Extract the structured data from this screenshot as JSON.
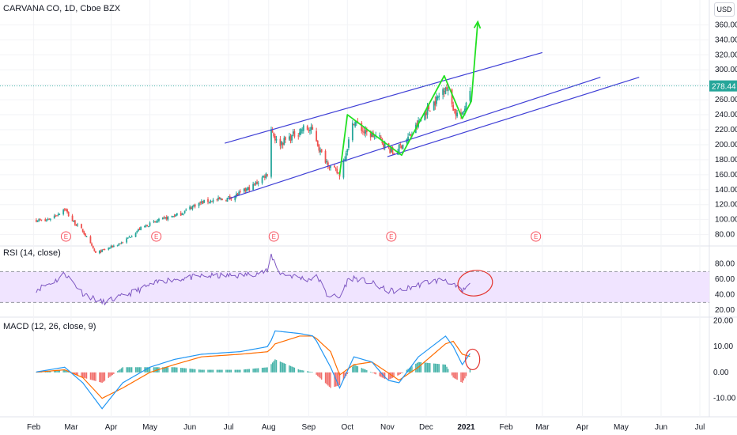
{
  "header": {
    "symbol_title": "CARVANA CO, 1D, Cboe BZX",
    "currency": "USD",
    "last_price": "278.44"
  },
  "indicators": {
    "rsi_title": "RSI (14, close)",
    "macd_title": "MACD (12, 26, close, 9)"
  },
  "earnings_marker_label": "E",
  "colors": {
    "up": "#26a69a",
    "down": "#ef5350",
    "trend_channel": "#3f3fd6",
    "pattern": "#22e022",
    "annotation": "#e3342f",
    "rsi_line": "#7e57c2",
    "rsi_band": "#f0e4ff",
    "macd_line": "#2196f3",
    "signal_line": "#ff6d00",
    "last_price_line": "#26a69a"
  },
  "chart_data": [
    {
      "type": "candlestick",
      "title": "CARVANA CO, 1D, Cboe BZX",
      "x_axis_labels": [
        "Feb",
        "Mar",
        "Apr",
        "May",
        "Jun",
        "Jul",
        "Aug",
        "Sep",
        "Oct",
        "Nov",
        "Dec",
        "2021",
        "Feb",
        "Mar",
        "Apr",
        "May",
        "Jun",
        "Jul"
      ],
      "y_axis_ticks": [
        80,
        100,
        120,
        140,
        160,
        180,
        200,
        220,
        240,
        260,
        280,
        300,
        320,
        340,
        360
      ],
      "ylim": [
        68,
        372
      ],
      "last_price": 278.44,
      "price_path": [
        [
          "2020-02-01",
          100
        ],
        [
          "2020-02-10",
          98
        ],
        [
          "2020-02-20",
          108
        ],
        [
          "2020-02-25",
          115
        ],
        [
          "2020-03-01",
          100
        ],
        [
          "2020-03-10",
          85
        ],
        [
          "2020-03-20",
          55
        ],
        [
          "2020-04-10",
          70
        ],
        [
          "2020-04-25",
          90
        ],
        [
          "2020-05-10",
          100
        ],
        [
          "2020-05-25",
          108
        ],
        [
          "2020-06-05",
          120
        ],
        [
          "2020-06-15",
          125
        ],
        [
          "2020-06-28",
          127
        ],
        [
          "2020-07-10",
          135
        ],
        [
          "2020-07-20",
          145
        ],
        [
          "2020-07-31",
          162
        ],
        [
          "2020-08-03",
          222
        ],
        [
          "2020-08-08",
          200
        ],
        [
          "2020-08-18",
          210
        ],
        [
          "2020-08-28",
          222
        ],
        [
          "2020-09-05",
          218
        ],
        [
          "2020-09-10",
          190
        ],
        [
          "2020-09-18",
          170
        ],
        [
          "2020-09-25",
          160
        ],
        [
          "2020-10-01",
          198
        ],
        [
          "2020-10-06",
          232
        ],
        [
          "2020-10-15",
          215
        ],
        [
          "2020-10-25",
          210
        ],
        [
          "2020-10-30",
          200
        ],
        [
          "2020-11-06",
          188
        ],
        [
          "2020-11-12",
          200
        ],
        [
          "2020-11-20",
          215
        ],
        [
          "2020-12-01",
          245
        ],
        [
          "2020-12-10",
          262
        ],
        [
          "2020-12-16",
          280
        ],
        [
          "2020-12-21",
          255
        ],
        [
          "2020-12-24",
          242
        ],
        [
          "2020-12-29",
          238
        ],
        [
          "2021-01-01",
          258
        ],
        [
          "2021-01-04",
          278
        ]
      ],
      "earnings_dates": [
        "2020-02-26",
        "2020-05-06",
        "2020-08-05",
        "2020-11-04",
        "2021-02-24"
      ],
      "drawings": {
        "trend_channel_upper": [
          [
            "2020-06-28",
            202
          ],
          [
            "2021-03-01",
            323
          ]
        ],
        "trend_channel_middle": [
          [
            "2020-07-01",
            128
          ],
          [
            "2021-04-15",
            290
          ]
        ],
        "trend_channel_lower": [
          [
            "2020-11-01",
            184
          ],
          [
            "2021-05-15",
            290
          ]
        ],
        "zigzag_pattern": [
          [
            "2020-09-25",
            160
          ],
          [
            "2020-10-01",
            240
          ],
          [
            "2020-11-12",
            186
          ],
          [
            "2020-12-15",
            292
          ],
          [
            "2020-12-29",
            235
          ],
          [
            "2021-01-05",
            258
          ],
          [
            "2021-01-10",
            364
          ]
        ]
      }
    },
    {
      "type": "line",
      "title": "RSI (14, close)",
      "y_axis_ticks": [
        20,
        40,
        60,
        80
      ],
      "ylim": [
        14,
        96
      ],
      "band": [
        30,
        70
      ],
      "x": [
        "2020-02-01",
        "2020-02-20",
        "2020-02-25",
        "2020-03-10",
        "2020-03-25",
        "2020-04-10",
        "2020-05-10",
        "2020-06-10",
        "2020-07-10",
        "2020-07-31",
        "2020-08-03",
        "2020-08-10",
        "2020-08-31",
        "2020-09-08",
        "2020-09-15",
        "2020-09-25",
        "2020-10-01",
        "2020-10-06",
        "2020-10-20",
        "2020-11-01",
        "2020-11-10",
        "2020-11-20",
        "2020-12-01",
        "2020-12-16",
        "2020-12-22",
        "2020-12-29",
        "2021-01-05"
      ],
      "values": [
        45,
        60,
        68,
        42,
        30,
        38,
        58,
        64,
        65,
        70,
        91,
        68,
        60,
        63,
        40,
        36,
        58,
        62,
        55,
        45,
        45,
        50,
        56,
        60,
        52,
        44,
        55
      ]
    },
    {
      "type": "line",
      "title": "MACD (12, 26, close, 9)",
      "y_axis_ticks": [
        -10,
        0,
        10,
        20
      ],
      "ylim": [
        -15,
        21
      ],
      "series": [
        {
          "name": "MACD",
          "x": [
            "2020-02-01",
            "2020-02-25",
            "2020-03-10",
            "2020-03-25",
            "2020-04-10",
            "2020-05-01",
            "2020-05-20",
            "2020-06-10",
            "2020-07-10",
            "2020-08-01",
            "2020-08-06",
            "2020-08-25",
            "2020-09-05",
            "2020-09-18",
            "2020-09-25",
            "2020-10-06",
            "2020-10-20",
            "2020-11-01",
            "2020-11-10",
            "2020-11-25",
            "2020-12-16",
            "2020-12-22",
            "2020-12-29",
            "2021-01-05"
          ],
          "values": [
            0,
            2,
            -4,
            -14,
            -4,
            2,
            5,
            7,
            8,
            10,
            16,
            15,
            14,
            2,
            -6,
            6,
            4,
            -3,
            -4,
            6,
            14,
            10,
            3,
            8
          ]
        },
        {
          "name": "Signal",
          "x": [
            "2020-02-01",
            "2020-02-25",
            "2020-03-10",
            "2020-03-25",
            "2020-04-10",
            "2020-05-01",
            "2020-05-20",
            "2020-06-10",
            "2020-07-10",
            "2020-08-01",
            "2020-08-06",
            "2020-08-25",
            "2020-09-05",
            "2020-09-18",
            "2020-09-25",
            "2020-10-06",
            "2020-10-20",
            "2020-11-01",
            "2020-11-10",
            "2020-11-25",
            "2020-12-16",
            "2020-12-22",
            "2020-12-29",
            "2021-01-05"
          ],
          "values": [
            0,
            1,
            -2,
            -10,
            -6,
            0,
            3,
            6,
            7,
            8,
            11,
            14,
            14,
            8,
            -1,
            3,
            4,
            0,
            -3,
            2,
            11,
            12,
            7,
            6
          ]
        }
      ]
    }
  ]
}
